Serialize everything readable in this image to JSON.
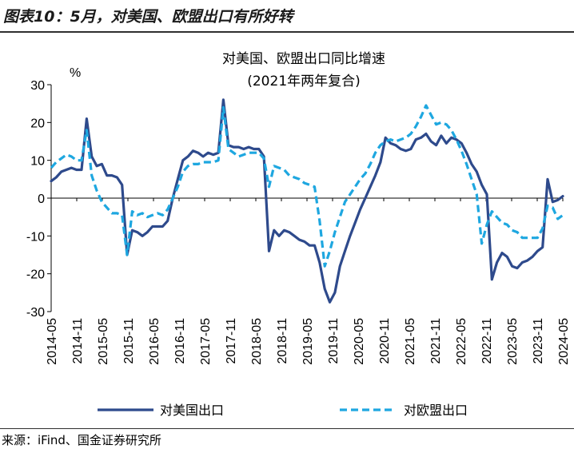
{
  "figure_title": "图表10：5月，对美国、欧盟出口有所好转",
  "source": "来源：iFind、国金证券研究所",
  "chart_data": {
    "type": "line",
    "title": "对美国、欧盟出口同比增速",
    "subtitle": "(2021年两年复合)",
    "ylabel": "%",
    "ylim": [
      -30,
      30
    ],
    "yticks": [
      30,
      20,
      10,
      0,
      -10,
      -20,
      -30
    ],
    "x_tick_labels": [
      "2014-05",
      "2014-11",
      "2015-05",
      "2015-11",
      "2016-05",
      "2016-11",
      "2017-05",
      "2017-11",
      "2018-05",
      "2018-11",
      "2019-05",
      "2019-11",
      "2020-05",
      "2020-11",
      "2021-05",
      "2021-11",
      "2022-05",
      "2022-11",
      "2023-05",
      "2023-11",
      "2024-05"
    ],
    "x_start": "2014-05",
    "x_end": "2024-05",
    "series": [
      {
        "name": "对美国出口",
        "color": "#2e4a8c",
        "style": "solid",
        "values": [
          4.5,
          5.5,
          7,
          7.5,
          8,
          7.5,
          7.5,
          21,
          11,
          8.5,
          9,
          6,
          6,
          5.5,
          3.5,
          -15,
          -8.5,
          -9,
          -10,
          -9,
          -7.5,
          -7.5,
          -7.5,
          -6,
          0,
          5,
          10,
          11,
          12.5,
          12,
          11,
          12,
          11.5,
          12,
          26,
          14,
          13.5,
          13.5,
          13,
          13.5,
          13,
          13,
          11,
          -14,
          -8.5,
          -10,
          -8.5,
          -9,
          -10,
          -11,
          -11.5,
          -12.5,
          -12.5,
          -17,
          -24,
          -27.5,
          -25,
          -18,
          -14,
          -10,
          -6.5,
          -3,
          0,
          3,
          6,
          9.5,
          16,
          14.5,
          14,
          13,
          12.5,
          13,
          15.5,
          16,
          17,
          15,
          14,
          16.5,
          14.5,
          16,
          15.5,
          14.5,
          12,
          9,
          7,
          3.5,
          1,
          -21.5,
          -17,
          -14.5,
          -15.5,
          -18,
          -18.5,
          -17,
          -16.5,
          -15.5,
          -14,
          -13,
          5,
          -1,
          -0.5,
          0.5
        ],
        "_note": "monthly values 2014-05 .. 2024-05 (121 points); list holds 102 samples evenly spanning the range"
      },
      {
        "name": "对欧盟出口",
        "color": "#1ea7e0",
        "style": "dashed",
        "values": [
          8,
          9.5,
          10.5,
          11.5,
          11,
          10,
          10,
          18,
          6,
          2,
          -1,
          -2.5,
          -4,
          -4,
          -4.5,
          -15,
          -3.5,
          -4.5,
          -4,
          -5,
          -4.5,
          -4,
          -4.5,
          -3,
          0,
          3,
          7,
          8.5,
          9,
          9,
          9.5,
          9.5,
          9.5,
          10,
          24,
          13,
          12,
          11,
          11.5,
          12,
          12,
          12,
          10.5,
          3,
          8.5,
          8,
          7.5,
          6,
          5.5,
          5,
          4,
          3.5,
          3,
          -6,
          -18,
          -14,
          -9,
          -5,
          -1,
          1,
          3,
          5,
          6.5,
          9,
          12,
          14,
          15,
          15.5,
          15,
          15.5,
          16,
          17,
          19,
          21.5,
          24.5,
          22,
          19.5,
          20,
          19.5,
          18,
          15.5,
          12.5,
          9,
          5,
          1,
          -12,
          -7,
          -3.5,
          -5,
          -6.5,
          -7,
          -8.5,
          -9,
          -10.5,
          -10.5,
          -10.5,
          -10.5,
          -8,
          -2,
          -2.5,
          -5.5,
          -4.5
        ]
      }
    ],
    "legend": [
      {
        "label": "对美国出口",
        "style": "solid",
        "color": "#2e4a8c"
      },
      {
        "label": "对欧盟出口",
        "style": "dashed",
        "color": "#1ea7e0"
      }
    ],
    "legend_position": "bottom",
    "grid": false
  }
}
